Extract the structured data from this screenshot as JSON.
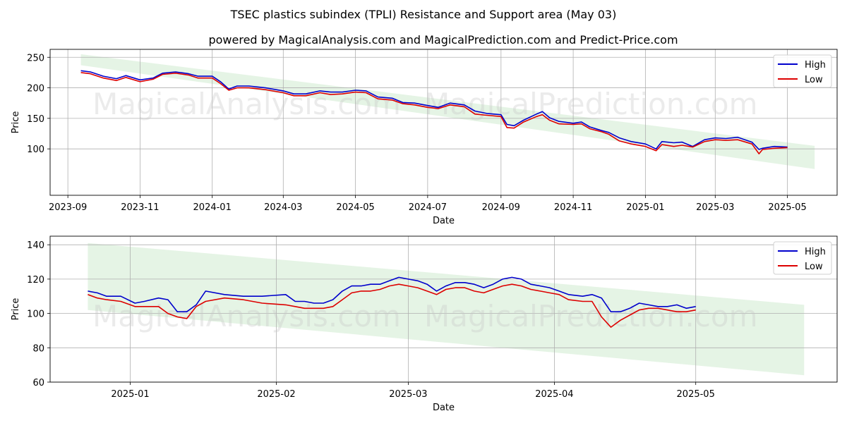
{
  "title": "TSEC plastics subindex (TPLI) Resistance and Support area (May 03)",
  "subtitle": "powered by MagicalAnalysis.com and MagicalPrediction.com and Predict-Price.com",
  "watermarks": [
    "MagicalAnalysis.com",
    "MagicalPrediction.com"
  ],
  "colors": {
    "high": "#0000cc",
    "low": "#dd0000",
    "band": "#d4ecd4",
    "grid": "#b0b0b0"
  },
  "chart_data": [
    {
      "type": "line",
      "xlabel": "Date",
      "ylabel": "Price",
      "xlim": [
        "2023-08-17",
        "2025-06-12"
      ],
      "ylim": [
        24,
        263
      ],
      "xticks": [
        "2023-09",
        "2023-11",
        "2024-01",
        "2024-03",
        "2024-05",
        "2024-07",
        "2024-09",
        "2024-11",
        "2025-01",
        "2025-03",
        "2025-05"
      ],
      "tick_dates": [
        "2023-09-01",
        "2023-11-01",
        "2024-01-01",
        "2024-03-01",
        "2024-05-01",
        "2024-07-01",
        "2024-09-01",
        "2024-11-01",
        "2025-01-01",
        "2025-03-01",
        "2025-05-01"
      ],
      "yticks": [
        100,
        150,
        200,
        250
      ],
      "legend": "top-right",
      "grid": true,
      "band": {
        "start": "2023-09-12",
        "end": "2025-05-24",
        "upper": [
          255,
          105
        ],
        "lower": [
          237,
          67
        ]
      },
      "x": [
        "2023-09-12",
        "2023-09-20",
        "2023-10-01",
        "2023-10-12",
        "2023-10-20",
        "2023-11-01",
        "2023-11-12",
        "2023-11-20",
        "2023-12-01",
        "2023-12-12",
        "2023-12-20",
        "2024-01-01",
        "2024-01-08",
        "2024-01-15",
        "2024-01-22",
        "2024-02-01",
        "2024-02-15",
        "2024-03-01",
        "2024-03-10",
        "2024-03-20",
        "2024-04-01",
        "2024-04-10",
        "2024-04-20",
        "2024-05-01",
        "2024-05-10",
        "2024-05-20",
        "2024-06-01",
        "2024-06-10",
        "2024-06-20",
        "2024-07-01",
        "2024-07-10",
        "2024-07-20",
        "2024-08-01",
        "2024-08-10",
        "2024-08-20",
        "2024-09-01",
        "2024-09-06",
        "2024-09-12",
        "2024-09-20",
        "2024-10-01",
        "2024-10-06",
        "2024-10-12",
        "2024-10-20",
        "2024-11-01",
        "2024-11-08",
        "2024-11-15",
        "2024-11-25",
        "2024-12-01",
        "2024-12-10",
        "2024-12-20",
        "2025-01-01",
        "2025-01-10",
        "2025-01-15",
        "2025-01-25",
        "2025-02-01",
        "2025-02-10",
        "2025-02-20",
        "2025-03-01",
        "2025-03-10",
        "2025-03-20",
        "2025-04-01",
        "2025-04-07",
        "2025-04-10",
        "2025-04-20",
        "2025-05-01"
      ],
      "series": [
        {
          "name": "High",
          "values": [
            228,
            226,
            219,
            215,
            220,
            213,
            216,
            224,
            226,
            223,
            219,
            219,
            210,
            198,
            203,
            203,
            200,
            195,
            190,
            190,
            195,
            193,
            193,
            196,
            195,
            185,
            183,
            176,
            175,
            171,
            168,
            175,
            172,
            162,
            158,
            156,
            140,
            138,
            147,
            157,
            161,
            151,
            145,
            142,
            144,
            136,
            130,
            127,
            118,
            112,
            108,
            100,
            112,
            110,
            111,
            104,
            115,
            118,
            117,
            119,
            111,
            99,
            101,
            104,
            103
          ]
        },
        {
          "name": "Low",
          "values": [
            225,
            223,
            216,
            212,
            217,
            210,
            214,
            222,
            224,
            221,
            216,
            216,
            207,
            196,
            200,
            200,
            197,
            192,
            187,
            187,
            192,
            189,
            190,
            193,
            192,
            182,
            180,
            174,
            172,
            168,
            166,
            172,
            169,
            157,
            155,
            153,
            135,
            134,
            144,
            153,
            156,
            147,
            141,
            140,
            141,
            133,
            128,
            124,
            113,
            108,
            104,
            97,
            107,
            104,
            106,
            103,
            112,
            115,
            114,
            115,
            108,
            92,
            99,
            101,
            102
          ]
        }
      ]
    },
    {
      "type": "line",
      "xlabel": "Date",
      "ylabel": "Price",
      "xlim": [
        "2024-12-15",
        "2025-05-31"
      ],
      "ylim": [
        60,
        145
      ],
      "xticks": [
        "2025-01",
        "2025-02",
        "2025-03",
        "2025-04",
        "2025-05"
      ],
      "tick_dates": [
        "2025-01-01",
        "2025-02-01",
        "2025-03-01",
        "2025-04-01",
        "2025-05-01"
      ],
      "yticks": [
        60,
        80,
        100,
        120,
        140
      ],
      "legend": "top-right",
      "grid": true,
      "band": {
        "start": "2024-12-23",
        "end": "2025-05-24",
        "upper": [
          141,
          105
        ],
        "lower": [
          102,
          64
        ]
      },
      "x": [
        "2024-12-23",
        "2024-12-25",
        "2024-12-27",
        "2024-12-30",
        "2025-01-02",
        "2025-01-04",
        "2025-01-07",
        "2025-01-09",
        "2025-01-11",
        "2025-01-13",
        "2025-01-15",
        "2025-01-17",
        "2025-01-21",
        "2025-01-25",
        "2025-01-29",
        "2025-02-03",
        "2025-02-05",
        "2025-02-07",
        "2025-02-09",
        "2025-02-11",
        "2025-02-13",
        "2025-02-15",
        "2025-02-17",
        "2025-02-19",
        "2025-02-21",
        "2025-02-23",
        "2025-02-25",
        "2025-02-27",
        "2025-03-01",
        "2025-03-03",
        "2025-03-05",
        "2025-03-07",
        "2025-03-09",
        "2025-03-11",
        "2025-03-13",
        "2025-03-15",
        "2025-03-17",
        "2025-03-19",
        "2025-03-21",
        "2025-03-23",
        "2025-03-25",
        "2025-03-27",
        "2025-03-29",
        "2025-03-31",
        "2025-04-02",
        "2025-04-04",
        "2025-04-07",
        "2025-04-09",
        "2025-04-11",
        "2025-04-13",
        "2025-04-15",
        "2025-04-17",
        "2025-04-19",
        "2025-04-21",
        "2025-04-23",
        "2025-04-25",
        "2025-04-27",
        "2025-04-29",
        "2025-05-01"
      ],
      "series": [
        {
          "name": "High",
          "values": [
            113,
            112,
            110,
            110,
            106,
            107,
            109,
            108,
            101,
            101,
            105,
            113,
            111,
            110,
            110,
            111,
            107,
            107,
            106,
            106,
            108,
            113,
            116,
            116,
            117,
            117,
            119,
            121,
            120,
            119,
            117,
            113,
            116,
            118,
            118,
            117,
            115,
            117,
            120,
            121,
            120,
            117,
            116,
            115,
            113,
            111,
            110,
            111,
            109,
            101,
            101,
            103,
            106,
            105,
            104,
            104,
            105,
            103,
            104
          ]
        },
        {
          "name": "Low",
          "values": [
            111,
            109,
            108,
            107,
            104,
            104,
            104,
            100,
            98,
            97,
            104,
            107,
            109,
            108,
            106,
            105,
            104,
            103,
            103,
            103,
            104,
            108,
            112,
            113,
            113,
            114,
            116,
            117,
            116,
            115,
            113,
            111,
            114,
            115,
            115,
            113,
            112,
            114,
            116,
            117,
            116,
            114,
            113,
            112,
            111,
            108,
            107,
            107,
            98,
            92,
            96,
            99,
            102,
            103,
            103,
            102,
            101,
            101,
            102
          ]
        }
      ]
    }
  ]
}
